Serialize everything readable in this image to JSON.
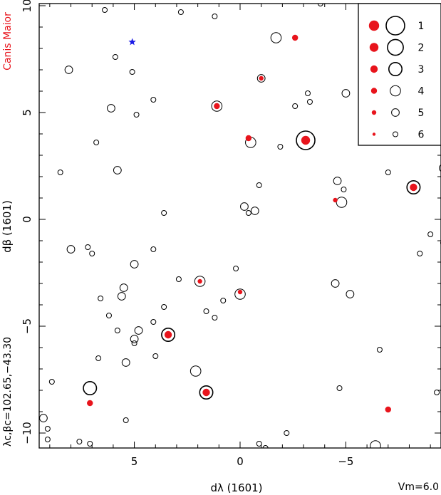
{
  "chart_data": {
    "type": "scatter",
    "title": "",
    "side_label": "Canis Maior",
    "xlabel": "dλ (1601)",
    "ylabel": "dβ (1601)",
    "center_label": "λc,βc=102.65,−43.30",
    "footer_label": "Vm=6.0",
    "xlim": [
      9.5,
      -9.5
    ],
    "ylim": [
      -10.7,
      10.1
    ],
    "x_ticks": [
      {
        "v": 5,
        "label": "5"
      },
      {
        "v": 0,
        "label": "0"
      },
      {
        "v": -5,
        "label": "−5"
      }
    ],
    "y_ticks": [
      {
        "v": 10,
        "label": "10"
      },
      {
        "v": 5,
        "label": "5"
      },
      {
        "v": 0,
        "label": "0"
      },
      {
        "v": -5,
        "label": "−5"
      },
      {
        "v": -10,
        "label": "−10"
      }
    ],
    "legend": {
      "position": "top-right",
      "entries": [
        {
          "label": "1",
          "mag": 1
        },
        {
          "label": "2",
          "mag": 2
        },
        {
          "label": "3",
          "mag": 3
        },
        {
          "label": "4",
          "mag": 4
        },
        {
          "label": "5",
          "mag": 5
        },
        {
          "label": "6",
          "mag": 6
        }
      ]
    },
    "colors": {
      "filled": "#e8141c",
      "open": "#000000",
      "label": "#e8141c",
      "star_marker": "#1a1ae6"
    },
    "open_stars": [
      {
        "x": 6.4,
        "y": 9.8,
        "mag": 6
      },
      {
        "x": 2.8,
        "y": 9.7,
        "mag": 6
      },
      {
        "x": 1.2,
        "y": 9.5,
        "mag": 6
      },
      {
        "x": -3.8,
        "y": 10.1,
        "mag": 6
      },
      {
        "x": -1.7,
        "y": 8.5,
        "mag": 4
      },
      {
        "x": 5.9,
        "y": 7.6,
        "mag": 6
      },
      {
        "x": 8.1,
        "y": 7.0,
        "mag": 5
      },
      {
        "x": 5.1,
        "y": 6.9,
        "mag": 6
      },
      {
        "x": -1.0,
        "y": 6.6,
        "mag": 5
      },
      {
        "x": -5.8,
        "y": 6.6,
        "mag": 6
      },
      {
        "x": -3.2,
        "y": 5.9,
        "mag": 6
      },
      {
        "x": -5.0,
        "y": 5.9,
        "mag": 5
      },
      {
        "x": 4.1,
        "y": 5.6,
        "mag": 6
      },
      {
        "x": -3.3,
        "y": 5.5,
        "mag": 6
      },
      {
        "x": 1.1,
        "y": 5.3,
        "mag": 4
      },
      {
        "x": 6.1,
        "y": 5.2,
        "mag": 5
      },
      {
        "x": -2.6,
        "y": 5.3,
        "mag": 6
      },
      {
        "x": 4.9,
        "y": 4.9,
        "mag": 6
      },
      {
        "x": -3.1,
        "y": 3.7,
        "mag": 1
      },
      {
        "x": -0.5,
        "y": 3.6,
        "mag": 4
      },
      {
        "x": 6.8,
        "y": 3.6,
        "mag": 6
      },
      {
        "x": -1.9,
        "y": 3.4,
        "mag": 6
      },
      {
        "x": 5.8,
        "y": 2.3,
        "mag": 5
      },
      {
        "x": 8.5,
        "y": 2.2,
        "mag": 6
      },
      {
        "x": -7.0,
        "y": 2.2,
        "mag": 6
      },
      {
        "x": -9.6,
        "y": 2.4,
        "mag": 5
      },
      {
        "x": -4.6,
        "y": 1.8,
        "mag": 5
      },
      {
        "x": -8.2,
        "y": 1.5,
        "mag": 3
      },
      {
        "x": -0.9,
        "y": 1.6,
        "mag": 6
      },
      {
        "x": -4.9,
        "y": 1.4,
        "mag": 6
      },
      {
        "x": -4.8,
        "y": 0.8,
        "mag": 4
      },
      {
        "x": -0.2,
        "y": 0.6,
        "mag": 5
      },
      {
        "x": -0.7,
        "y": 0.4,
        "mag": 5
      },
      {
        "x": -0.4,
        "y": 0.3,
        "mag": 6
      },
      {
        "x": 3.6,
        "y": 0.3,
        "mag": 6
      },
      {
        "x": -9.0,
        "y": -0.7,
        "mag": 6
      },
      {
        "x": -9.6,
        "y": -1.1,
        "mag": 6
      },
      {
        "x": 7.2,
        "y": -1.3,
        "mag": 6
      },
      {
        "x": 8.0,
        "y": -1.4,
        "mag": 5
      },
      {
        "x": 4.1,
        "y": -1.4,
        "mag": 6
      },
      {
        "x": 7.0,
        "y": -1.6,
        "mag": 6
      },
      {
        "x": -8.5,
        "y": -1.6,
        "mag": 6
      },
      {
        "x": 5.0,
        "y": -2.1,
        "mag": 5
      },
      {
        "x": 0.2,
        "y": -2.3,
        "mag": 6
      },
      {
        "x": 2.9,
        "y": -2.8,
        "mag": 6
      },
      {
        "x": 1.9,
        "y": -2.9,
        "mag": 4
      },
      {
        "x": -4.5,
        "y": -3.0,
        "mag": 5
      },
      {
        "x": 5.5,
        "y": -3.2,
        "mag": 5
      },
      {
        "x": -5.2,
        "y": -3.5,
        "mag": 5
      },
      {
        "x": 5.6,
        "y": -3.6,
        "mag": 5
      },
      {
        "x": 0.0,
        "y": -3.5,
        "mag": 4
      },
      {
        "x": 6.6,
        "y": -3.7,
        "mag": 6
      },
      {
        "x": 0.8,
        "y": -3.8,
        "mag": 6
      },
      {
        "x": 3.6,
        "y": -4.1,
        "mag": 6
      },
      {
        "x": 1.6,
        "y": -4.3,
        "mag": 6
      },
      {
        "x": 1.2,
        "y": -4.6,
        "mag": 6
      },
      {
        "x": 6.2,
        "y": -4.5,
        "mag": 6
      },
      {
        "x": 4.1,
        "y": -4.8,
        "mag": 6
      },
      {
        "x": 4.8,
        "y": -5.2,
        "mag": 5
      },
      {
        "x": 5.8,
        "y": -5.2,
        "mag": 6
      },
      {
        "x": 3.4,
        "y": -5.4,
        "mag": 3
      },
      {
        "x": 5.0,
        "y": -5.6,
        "mag": 5
      },
      {
        "x": 5.0,
        "y": -5.8,
        "mag": 6
      },
      {
        "x": -6.6,
        "y": -6.1,
        "mag": 6
      },
      {
        "x": 4.0,
        "y": -6.4,
        "mag": 6
      },
      {
        "x": 6.7,
        "y": -6.5,
        "mag": 6
      },
      {
        "x": 5.4,
        "y": -6.7,
        "mag": 5
      },
      {
        "x": 2.1,
        "y": -7.1,
        "mag": 4
      },
      {
        "x": 8.9,
        "y": -7.6,
        "mag": 6
      },
      {
        "x": 7.1,
        "y": -7.9,
        "mag": 3
      },
      {
        "x": -4.7,
        "y": -7.9,
        "mag": 6
      },
      {
        "x": 1.6,
        "y": -8.1,
        "mag": 3
      },
      {
        "x": -9.3,
        "y": -8.1,
        "mag": 6
      },
      {
        "x": 9.3,
        "y": -9.3,
        "mag": 5
      },
      {
        "x": 5.4,
        "y": -9.4,
        "mag": 6
      },
      {
        "x": 9.1,
        "y": -9.8,
        "mag": 6
      },
      {
        "x": -2.2,
        "y": -10.0,
        "mag": 6
      },
      {
        "x": 9.1,
        "y": -10.3,
        "mag": 6
      },
      {
        "x": 7.6,
        "y": -10.4,
        "mag": 6
      },
      {
        "x": 7.1,
        "y": -10.5,
        "mag": 6
      },
      {
        "x": -0.9,
        "y": -10.5,
        "mag": 6
      },
      {
        "x": -1.2,
        "y": -10.7,
        "mag": 6
      },
      {
        "x": -6.4,
        "y": -10.6,
        "mag": 4
      }
    ],
    "filled_stars": [
      {
        "x": -2.6,
        "y": 8.5,
        "mag": 4
      },
      {
        "x": -1.0,
        "y": 6.6,
        "mag": 5
      },
      {
        "x": 1.1,
        "y": 5.3,
        "mag": 4
      },
      {
        "x": -3.1,
        "y": 3.7,
        "mag": 2
      },
      {
        "x": -0.4,
        "y": 3.8,
        "mag": 4
      },
      {
        "x": -8.2,
        "y": 1.5,
        "mag": 3
      },
      {
        "x": -4.5,
        "y": 0.9,
        "mag": 5
      },
      {
        "x": 1.9,
        "y": -2.9,
        "mag": 5
      },
      {
        "x": 0.0,
        "y": -3.4,
        "mag": 5
      },
      {
        "x": 3.4,
        "y": -5.4,
        "mag": 3
      },
      {
        "x": 1.6,
        "y": -8.1,
        "mag": 3
      },
      {
        "x": 7.1,
        "y": -8.6,
        "mag": 4
      },
      {
        "x": -7.0,
        "y": -8.9,
        "mag": 4
      }
    ],
    "markers": [
      {
        "x": 5.1,
        "y": 8.3,
        "symbol": "star"
      }
    ]
  }
}
